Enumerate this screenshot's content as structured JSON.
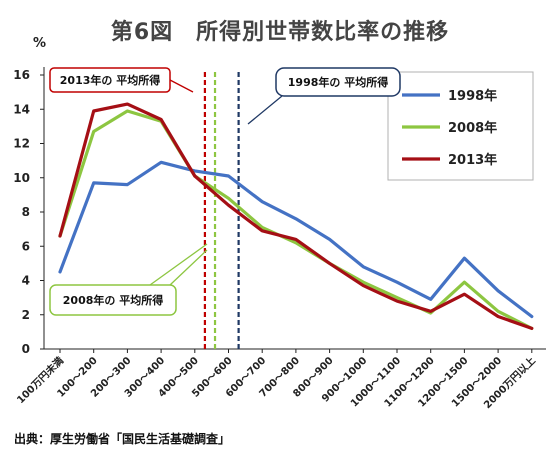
{
  "chart_data": {
    "type": "line",
    "title": "第6図　所得別世帯数比率の推移",
    "ylabel": "%",
    "ylim": [
      0,
      16
    ],
    "yticks": [
      0,
      2,
      4,
      6,
      8,
      10,
      12,
      14,
      16
    ],
    "grid": false,
    "legend": "top-right",
    "categories": [
      "100万円未満",
      "100～200",
      "200～300",
      "300～400",
      "400～500",
      "500～600",
      "600～700",
      "700～800",
      "800～900",
      "900～1000",
      "1000～1100",
      "1100～1200",
      "1200～1500",
      "1500～2000",
      "2000万円以上"
    ],
    "series": [
      {
        "name": "1998年",
        "color": "#4472C4",
        "values": [
          4.5,
          9.7,
          9.6,
          10.9,
          10.4,
          10.1,
          8.6,
          7.6,
          6.4,
          4.8,
          3.9,
          2.9,
          5.3,
          3.4,
          1.9
        ]
      },
      {
        "name": "2008年",
        "color": "#8DC641",
        "values": [
          6.6,
          12.7,
          13.9,
          13.3,
          10.1,
          8.8,
          7.1,
          6.2,
          5.0,
          3.9,
          3.0,
          2.1,
          3.9,
          2.2,
          1.2
        ]
      },
      {
        "name": "2013年",
        "color": "#A50F15",
        "values": [
          6.6,
          13.9,
          14.3,
          13.4,
          10.1,
          8.4,
          6.9,
          6.4,
          5.0,
          3.7,
          2.8,
          2.2,
          3.2,
          1.9,
          1.2
        ]
      }
    ],
    "annotations": [
      {
        "text": "2013年の 平均所得",
        "color": "#C00000",
        "line_style": "dashed",
        "position_value": 4.3
      },
      {
        "text": "1998年の 平均所得",
        "color": "#1F3864",
        "line_style": "dashed",
        "position_value": 5.3
      },
      {
        "text": "2008年の 平均所得",
        "color": "#8DC641",
        "line_style": "dashed",
        "position_value": 4.6
      }
    ],
    "source": "出典：厚生労働省「国民生活基礎調査」"
  }
}
